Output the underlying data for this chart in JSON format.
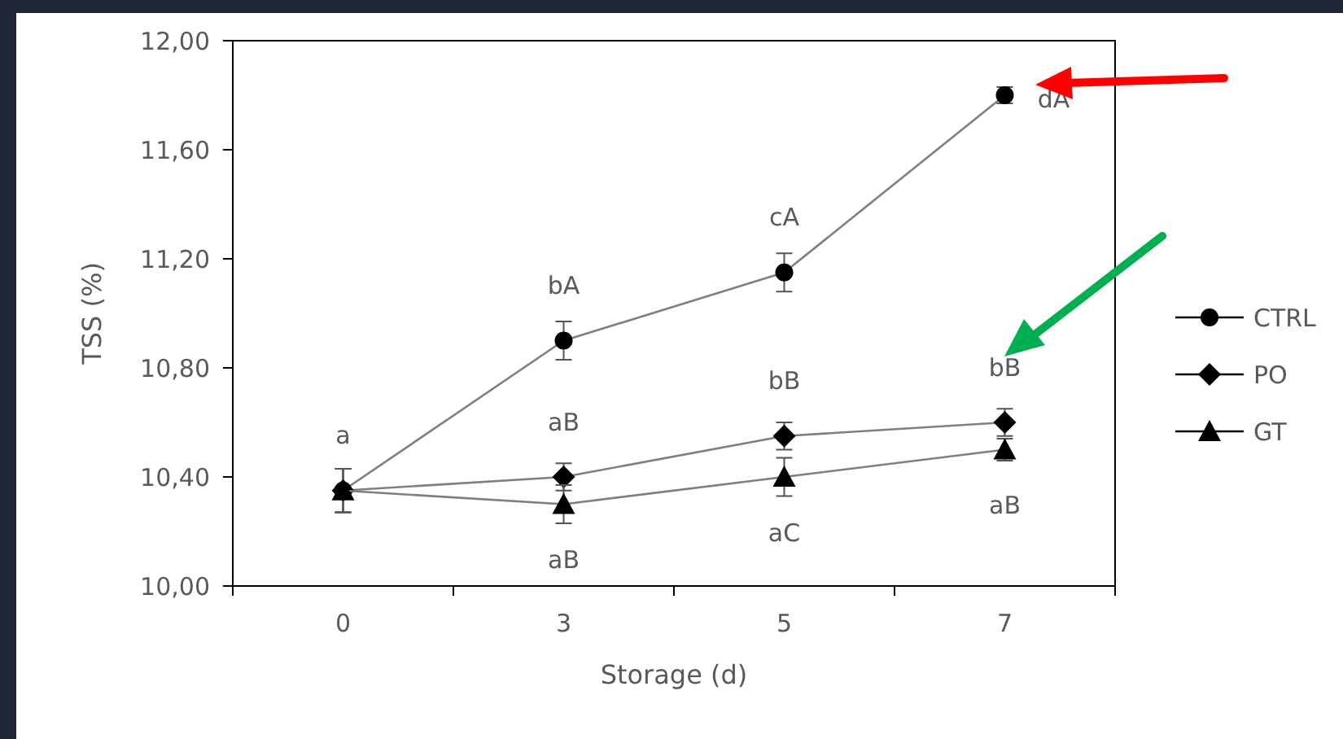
{
  "chart_data": {
    "type": "line",
    "xlabel": "Storage (d)",
    "ylabel": "TSS (%)",
    "categories": [
      "0",
      "3",
      "5",
      "7"
    ],
    "ylim": [
      10,
      12
    ],
    "yticks": [
      {
        "value": 10,
        "label": "10,00"
      },
      {
        "value": 10.4,
        "label": "10,40"
      },
      {
        "value": 10.8,
        "label": "10,80"
      },
      {
        "value": 11.2,
        "label": "11,20"
      },
      {
        "value": 11.6,
        "label": "11,60"
      },
      {
        "value": 12,
        "label": "12,00"
      }
    ],
    "series": [
      {
        "name": "CTRL",
        "color": "#000000",
        "marker": "circle",
        "values": [
          10.35,
          10.9,
          11.15,
          11.8
        ],
        "errors": [
          0.08,
          0.07,
          0.07,
          0.03
        ]
      },
      {
        "name": "PO",
        "color": "#000000",
        "marker": "diamond",
        "values": [
          10.35,
          10.4,
          10.55,
          10.6
        ],
        "errors": [
          0.08,
          0.05,
          0.05,
          0.05
        ]
      },
      {
        "name": "GT",
        "color": "#000000",
        "marker": "triangle",
        "values": [
          10.35,
          10.3,
          10.4,
          10.5
        ],
        "errors": [
          0.08,
          0.07,
          0.07,
          0.04
        ]
      }
    ],
    "annotations": [
      {
        "text": "a",
        "x": "0",
        "y": 10.35
      },
      {
        "text": "bA",
        "x": "3",
        "y": 10.9
      },
      {
        "text": "cA",
        "x": "5",
        "y": 11.15
      },
      {
        "text": "dA",
        "x": "7",
        "y": 11.8
      },
      {
        "text": "aB",
        "x": "3",
        "y": 10.4
      },
      {
        "text": "bB",
        "x": "5",
        "y": 10.55
      },
      {
        "text": "bB",
        "x": "7",
        "y": 10.6
      },
      {
        "text": "aB",
        "x": "3",
        "y": 10.3
      },
      {
        "text": "aC",
        "x": "5",
        "y": 10.4
      },
      {
        "text": "aB",
        "x": "7",
        "y": 10.5
      }
    ],
    "grid": false,
    "legend": "right",
    "line_style": "solid"
  }
}
